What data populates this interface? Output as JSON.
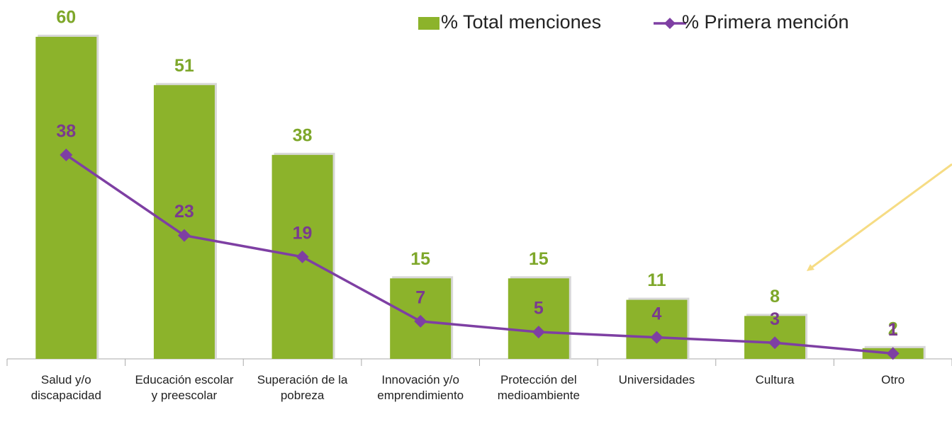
{
  "chart_data": {
    "type": "bar_line",
    "categories": [
      "Salud y/o discapacidad",
      "Educación escolar y preescolar",
      "Superación de la pobreza",
      "Innovación y/o emprendimiento",
      "Protección del medioambiente",
      "Universidades",
      "Cultura",
      "Otro"
    ],
    "series": [
      {
        "name": "% Total menciones",
        "type": "bar",
        "color": "#8cb32b",
        "label_color": "#7ea72a",
        "values": [
          60,
          51,
          38,
          15,
          15,
          11,
          8,
          2
        ]
      },
      {
        "name": "% Primera mención",
        "type": "line",
        "color": "#7e3fa3",
        "label_color": "#7a3a8f",
        "values": [
          38,
          23,
          19,
          7,
          5,
          4,
          3,
          1
        ]
      }
    ],
    "ylim": [
      0,
      60
    ],
    "legend": "top-right",
    "grid": false
  }
}
